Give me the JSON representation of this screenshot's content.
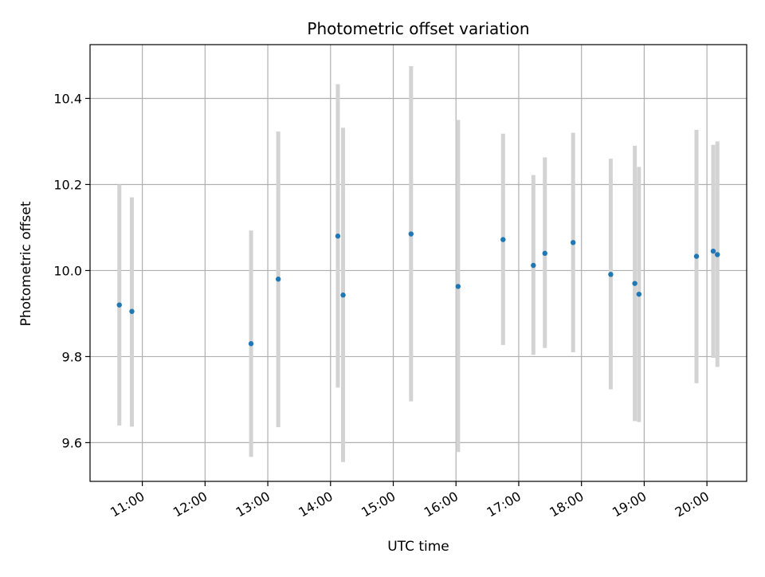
{
  "chart_data": {
    "type": "scatter",
    "title": "Photometric offset variation",
    "xlabel": "UTC time",
    "ylabel": "Photometric offset",
    "date": "",
    "x_ticks": [
      "11:00",
      "12:00",
      "13:00",
      "14:00",
      "15:00",
      "16:00",
      "17:00",
      "18:00",
      "19:00",
      "20:00"
    ],
    "xlim": [
      "10:10",
      "20:38"
    ],
    "y_ticks": [
      9.6,
      9.8,
      10.0,
      10.2,
      10.4
    ],
    "ylim": [
      9.51,
      10.525
    ],
    "grid": true,
    "colors": {
      "point": "#1f77b4",
      "errorbar": "#d3d3d3",
      "grid": "#b0b0b0"
    },
    "points": [
      {
        "x": "10:38",
        "y": 9.92,
        "y_low": 9.64,
        "y_high": 10.2
      },
      {
        "x": "10:50",
        "y": 9.905,
        "y_low": 9.637,
        "y_high": 10.17
      },
      {
        "x": "12:44",
        "y": 9.83,
        "y_low": 9.567,
        "y_high": 10.093
      },
      {
        "x": "13:10",
        "y": 9.98,
        "y_low": 9.636,
        "y_high": 10.323
      },
      {
        "x": "14:07",
        "y": 10.08,
        "y_low": 9.728,
        "y_high": 10.433
      },
      {
        "x": "14:12",
        "y": 9.943,
        "y_low": 9.555,
        "y_high": 10.332
      },
      {
        "x": "15:17",
        "y": 10.085,
        "y_low": 9.696,
        "y_high": 10.475
      },
      {
        "x": "16:02",
        "y": 9.963,
        "y_low": 9.578,
        "y_high": 10.35
      },
      {
        "x": "16:45",
        "y": 10.072,
        "y_low": 9.827,
        "y_high": 10.318
      },
      {
        "x": "17:14",
        "y": 10.012,
        "y_low": 9.804,
        "y_high": 10.222
      },
      {
        "x": "17:25",
        "y": 10.04,
        "y_low": 9.82,
        "y_high": 10.263
      },
      {
        "x": "17:52",
        "y": 10.065,
        "y_low": 9.81,
        "y_high": 10.32
      },
      {
        "x": "18:28",
        "y": 9.991,
        "y_low": 9.724,
        "y_high": 10.26
      },
      {
        "x": "18:51",
        "y": 9.97,
        "y_low": 9.65,
        "y_high": 10.29
      },
      {
        "x": "18:55",
        "y": 9.945,
        "y_low": 9.648,
        "y_high": 10.241
      },
      {
        "x": "19:50",
        "y": 10.033,
        "y_low": 9.738,
        "y_high": 10.327
      },
      {
        "x": "20:06",
        "y": 10.045,
        "y_low": 9.797,
        "y_high": 10.292
      },
      {
        "x": "20:10",
        "y": 10.037,
        "y_low": 9.776,
        "y_high": 10.3
      }
    ]
  }
}
